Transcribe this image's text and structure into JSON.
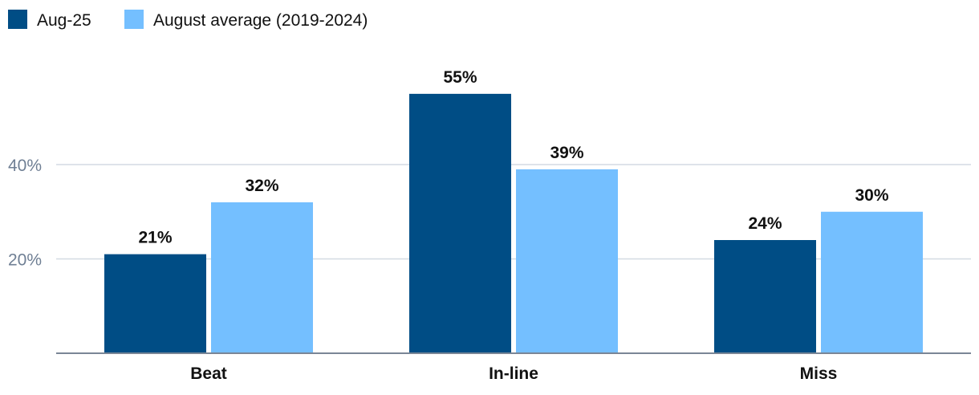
{
  "chart_data": {
    "type": "bar",
    "categories": [
      "Beat",
      "In-line",
      "Miss"
    ],
    "series": [
      {
        "name": "Aug-25",
        "values": [
          21,
          55,
          24
        ],
        "labels": [
          "21%",
          "55%",
          "24%"
        ],
        "color": "#004d85"
      },
      {
        "name": "August average (2019-2024)",
        "values": [
          32,
          39,
          30
        ],
        "labels": [
          "32%",
          "39%",
          "30%"
        ],
        "color": "#74bfff"
      }
    ],
    "title": "",
    "xlabel": "",
    "ylabel": "",
    "ylim": [
      0,
      60
    ],
    "yticks": [
      20,
      40
    ],
    "ytick_labels": [
      "20%",
      "40%"
    ],
    "grid": true,
    "legend": "top-left"
  }
}
